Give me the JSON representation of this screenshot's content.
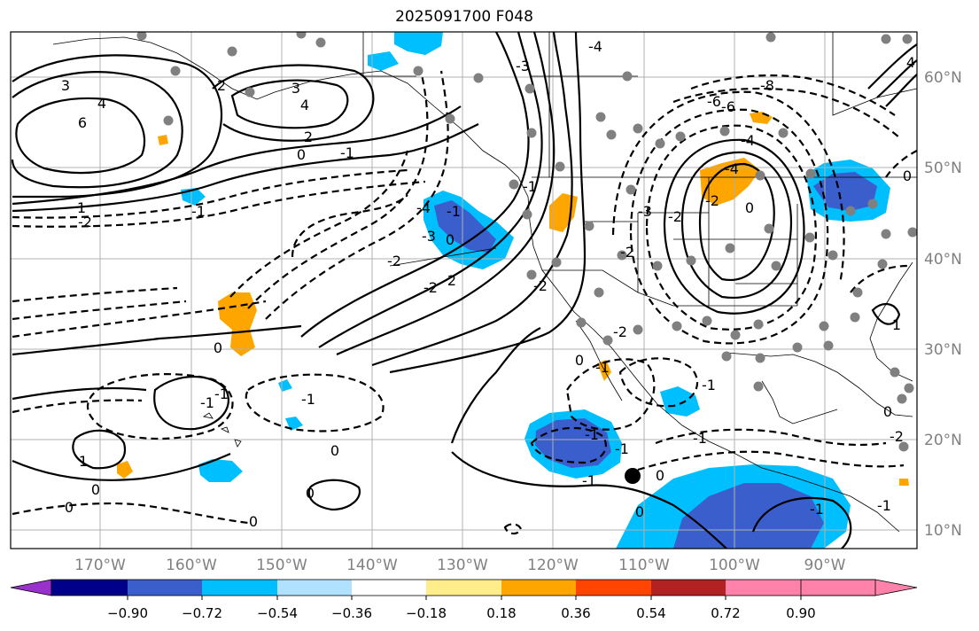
{
  "title": "2025091700 F048",
  "lat_labels": [
    "60°N",
    "50°N",
    "40°N",
    "30°N",
    "20°N",
    "10°N"
  ],
  "lon_labels": [
    "170°W",
    "160°W",
    "150°W",
    "140°W",
    "130°W",
    "120°W",
    "110°W",
    "100°W",
    "90°W"
  ],
  "contour_labels": [
    "3",
    "4",
    "6",
    "2",
    "3",
    "4",
    "2",
    "0",
    "-1",
    "-2",
    "1",
    "-1",
    "0",
    "-2",
    "-4",
    "-3",
    "2",
    "-1",
    "-2",
    "-3",
    "-4",
    "0",
    "-2",
    "-1",
    "-2",
    "-2",
    "0",
    "-6",
    "-8",
    "-6",
    "-4",
    "4",
    "0",
    "-4",
    "-2",
    "-3",
    "-2",
    "0",
    "-1",
    "0",
    "-1",
    "-1",
    "0",
    "-1",
    "-2",
    "-1",
    "0",
    "-1",
    "1",
    "0",
    "-1",
    "-1",
    "0",
    "0",
    "1",
    "-1",
    "0",
    "-1",
    "0",
    "-1"
  ],
  "colorbar": {
    "ticks": [
      "−0.90",
      "−0.72",
      "−0.54",
      "−0.36",
      "−0.18",
      "0.18",
      "0.36",
      "0.54",
      "0.72",
      "0.90"
    ],
    "colors": [
      "#9932cc",
      "#00008b",
      "#3a5fcd",
      "#00bfff",
      "#b0e2ff",
      "#ffffff",
      "#ffec8b",
      "#ffa500",
      "#ff4500",
      "#b22222",
      "#ff82ab"
    ]
  },
  "marker": {
    "label": "storm-center"
  }
}
